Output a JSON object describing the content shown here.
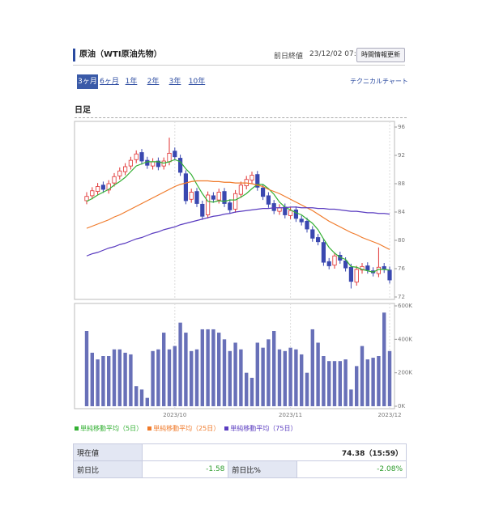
{
  "header": {
    "title": "原油（WTI原油先物）",
    "prev_close_label": "前日終値",
    "timestamp": "23/12/02 07:53",
    "refresh_button": "時間情報更新"
  },
  "tabs": [
    "3ヶ月",
    "6ヶ月",
    "1年",
    "2年",
    "3年",
    "10年"
  ],
  "technical_chart_link": "テクニカルチャート",
  "period_label": "日足",
  "chart_data": [
    {
      "type": "candlestick",
      "open": [
        85.6,
        86.3,
        86.9,
        87.8,
        87.1,
        88.1,
        89.1,
        89.7,
        90.5,
        91.4,
        92.4,
        91.3,
        90.5,
        91.2,
        90.5,
        91.1,
        92.6,
        91.6,
        89.4,
        85.8,
        86.9,
        85.1,
        83.6,
        86.3,
        85.7,
        86.9,
        85.3,
        84.4,
        86.5,
        87.7,
        88.5,
        89.3,
        87.4,
        86.3,
        85.2,
        84.1,
        84.7,
        83.5,
        84.3,
        83.0,
        82.7,
        81.5,
        80.4,
        79.7,
        77.0,
        76.5,
        77.9,
        77.1,
        76.2,
        74.1,
        75.8,
        76.4,
        75.7,
        75.3,
        76.3,
        75.8
      ],
      "high": [
        86.8,
        87.5,
        88.1,
        88.3,
        88.5,
        89.5,
        90.3,
        90.9,
        91.8,
        92.7,
        92.9,
        91.8,
        91.6,
        91.7,
        91.7,
        94.5,
        93.1,
        92.1,
        89.9,
        87.3,
        87.4,
        85.6,
        86.9,
        86.8,
        87.3,
        87.4,
        85.8,
        87.1,
        88.3,
        89.1,
        89.7,
        89.8,
        87.9,
        86.8,
        85.7,
        85.1,
        85.2,
        84.7,
        84.8,
        83.5,
        83.2,
        82.0,
        80.9,
        80.2,
        77.5,
        78.3,
        78.4,
        77.6,
        76.7,
        76.4,
        76.8,
        76.9,
        76.2,
        79.0,
        76.8,
        76.3
      ],
      "low": [
        85.1,
        85.8,
        86.4,
        86.7,
        86.6,
        87.6,
        88.6,
        89.2,
        90.0,
        90.9,
        90.7,
        90.1,
        90.0,
        89.9,
        90.0,
        90.6,
        91.3,
        89.1,
        85.1,
        85.3,
        84.7,
        82.9,
        83.1,
        85.3,
        85.2,
        84.7,
        83.8,
        83.9,
        86.0,
        87.2,
        88.0,
        87.0,
        85.7,
        84.6,
        83.7,
        83.6,
        83.1,
        83.0,
        82.6,
        82.1,
        81.1,
        79.8,
        79.3,
        76.4,
        75.9,
        76.0,
        76.7,
        75.6,
        73.2,
        73.6,
        75.3,
        75.3,
        74.9,
        74.8,
        75.4,
        73.9
      ],
      "close": [
        86.2,
        87,
        87.6,
        87.2,
        88,
        89,
        89.8,
        90.4,
        91.3,
        92.2,
        91.2,
        90.6,
        91.1,
        90.4,
        91.2,
        92.3,
        91.8,
        89.6,
        85.6,
        86.8,
        85.2,
        83.4,
        86.4,
        85.8,
        86.8,
        85.2,
        84.3,
        86.6,
        87.8,
        88.6,
        89.2,
        87.5,
        86.2,
        85.1,
        84.2,
        84.6,
        83.6,
        84.2,
        83.1,
        82.6,
        81.6,
        80.3,
        79.8,
        76.9,
        76.4,
        77.8,
        77.2,
        76.1,
        74.2,
        75.9,
        76.3,
        75.8,
        75.4,
        76.2,
        75.9,
        74.4
      ],
      "up_color": "#e03030",
      "down_color": "#3a48b0",
      "series": [
        {
          "name": "単純移動平均（5日）",
          "color": "#33b033",
          "values": [
            85.5,
            85.9,
            86.4,
            86.8,
            87.2,
            87.8,
            88.3,
            88.9,
            89.7,
            90.5,
            90.8,
            91.1,
            91.1,
            91.1,
            90.9,
            91.1,
            91.4,
            91.1,
            90.1,
            89.3,
            87.9,
            86.6,
            85.5,
            85.4,
            85.6,
            85.5,
            85.7,
            85.7,
            86.1,
            86.6,
            87.3,
            87.9,
            87.9,
            87.3,
            86.5,
            85.4,
            84.7,
            84.3,
            83.9,
            83.6,
            83.0,
            82.4,
            81.5,
            80.2,
            79.0,
            78.2,
            77.6,
            77.3,
            76.3,
            76.2,
            75.9,
            75.7,
            75.5,
            75.9,
            75.9,
            75.8
          ]
        },
        {
          "name": "単純移動平均（25日）",
          "color": "#f07a2a",
          "values": [
            81.7,
            82.0,
            82.3,
            82.6,
            82.9,
            83.3,
            83.6,
            84.0,
            84.4,
            84.8,
            85.2,
            85.6,
            86.0,
            86.4,
            86.8,
            87.2,
            87.6,
            87.9,
            88.1,
            88.3,
            88.4,
            88.4,
            88.4,
            88.3,
            88.3,
            88.2,
            88.2,
            88.1,
            88.1,
            88.1,
            88.0,
            87.8,
            87.6,
            87.2,
            86.9,
            86.6,
            86.2,
            85.8,
            85.4,
            85.0,
            84.6,
            84.2,
            83.7,
            83.2,
            82.7,
            82.3,
            81.9,
            81.5,
            81.1,
            80.8,
            80.4,
            80.1,
            79.8,
            79.5,
            79.1,
            78.7
          ]
        },
        {
          "name": "単純移動平均（75日）",
          "color": "#5a3cc0",
          "values": [
            77.8,
            78.1,
            78.3,
            78.6,
            78.9,
            79.1,
            79.4,
            79.6,
            79.9,
            80.2,
            80.4,
            80.7,
            81.0,
            81.2,
            81.5,
            81.7,
            81.9,
            82.2,
            82.4,
            82.6,
            82.8,
            83.0,
            83.2,
            83.4,
            83.5,
            83.7,
            83.8,
            84.0,
            84.1,
            84.2,
            84.3,
            84.4,
            84.5,
            84.5,
            84.6,
            84.6,
            84.6,
            84.7,
            84.7,
            84.6,
            84.6,
            84.6,
            84.5,
            84.5,
            84.4,
            84.4,
            84.3,
            84.2,
            84.1,
            84.1,
            84.0,
            83.9,
            83.9,
            83.8,
            83.8,
            83.7
          ]
        }
      ],
      "ylim": [
        72,
        96
      ],
      "yticks": [
        72,
        76,
        80,
        84,
        88,
        92,
        96
      ]
    },
    {
      "type": "bar",
      "categories": [
        null,
        null,
        null,
        null,
        null,
        null,
        null,
        null,
        null,
        null,
        null,
        null,
        null,
        null,
        null,
        null,
        "2023/10",
        null,
        null,
        null,
        null,
        null,
        null,
        null,
        null,
        null,
        null,
        null,
        null,
        null,
        null,
        null,
        null,
        null,
        null,
        null,
        null,
        "2023/11",
        null,
        null,
        null,
        null,
        null,
        null,
        null,
        null,
        null,
        null,
        null,
        null,
        null,
        null,
        null,
        null,
        null,
        "2023/12"
      ],
      "values": [
        450000,
        320000,
        280000,
        300000,
        300000,
        340000,
        340000,
        320000,
        310000,
        120000,
        100000,
        50000,
        330000,
        340000,
        440000,
        340000,
        360000,
        500000,
        440000,
        330000,
        340000,
        460000,
        460000,
        460000,
        440000,
        400000,
        330000,
        380000,
        340000,
        200000,
        170000,
        380000,
        350000,
        400000,
        450000,
        340000,
        330000,
        350000,
        340000,
        310000,
        200000,
        460000,
        380000,
        300000,
        270000,
        270000,
        270000,
        280000,
        100000,
        240000,
        360000,
        280000,
        290000,
        300000,
        560000,
        330000
      ],
      "color": "#6870b8",
      "ylim": [
        0,
        600000
      ],
      "yticks": [
        {
          "value": 0,
          "label": "0K"
        },
        {
          "value": 200000,
          "label": "200K"
        },
        {
          "value": 400000,
          "label": "400K"
        },
        {
          "value": 600000,
          "label": "600K"
        }
      ]
    }
  ],
  "table": {
    "rows": [
      [
        "現在値",
        "74.38（15:59）"
      ],
      [
        "前日比",
        -1.58,
        "前日比%",
        "-2.08%"
      ]
    ]
  }
}
